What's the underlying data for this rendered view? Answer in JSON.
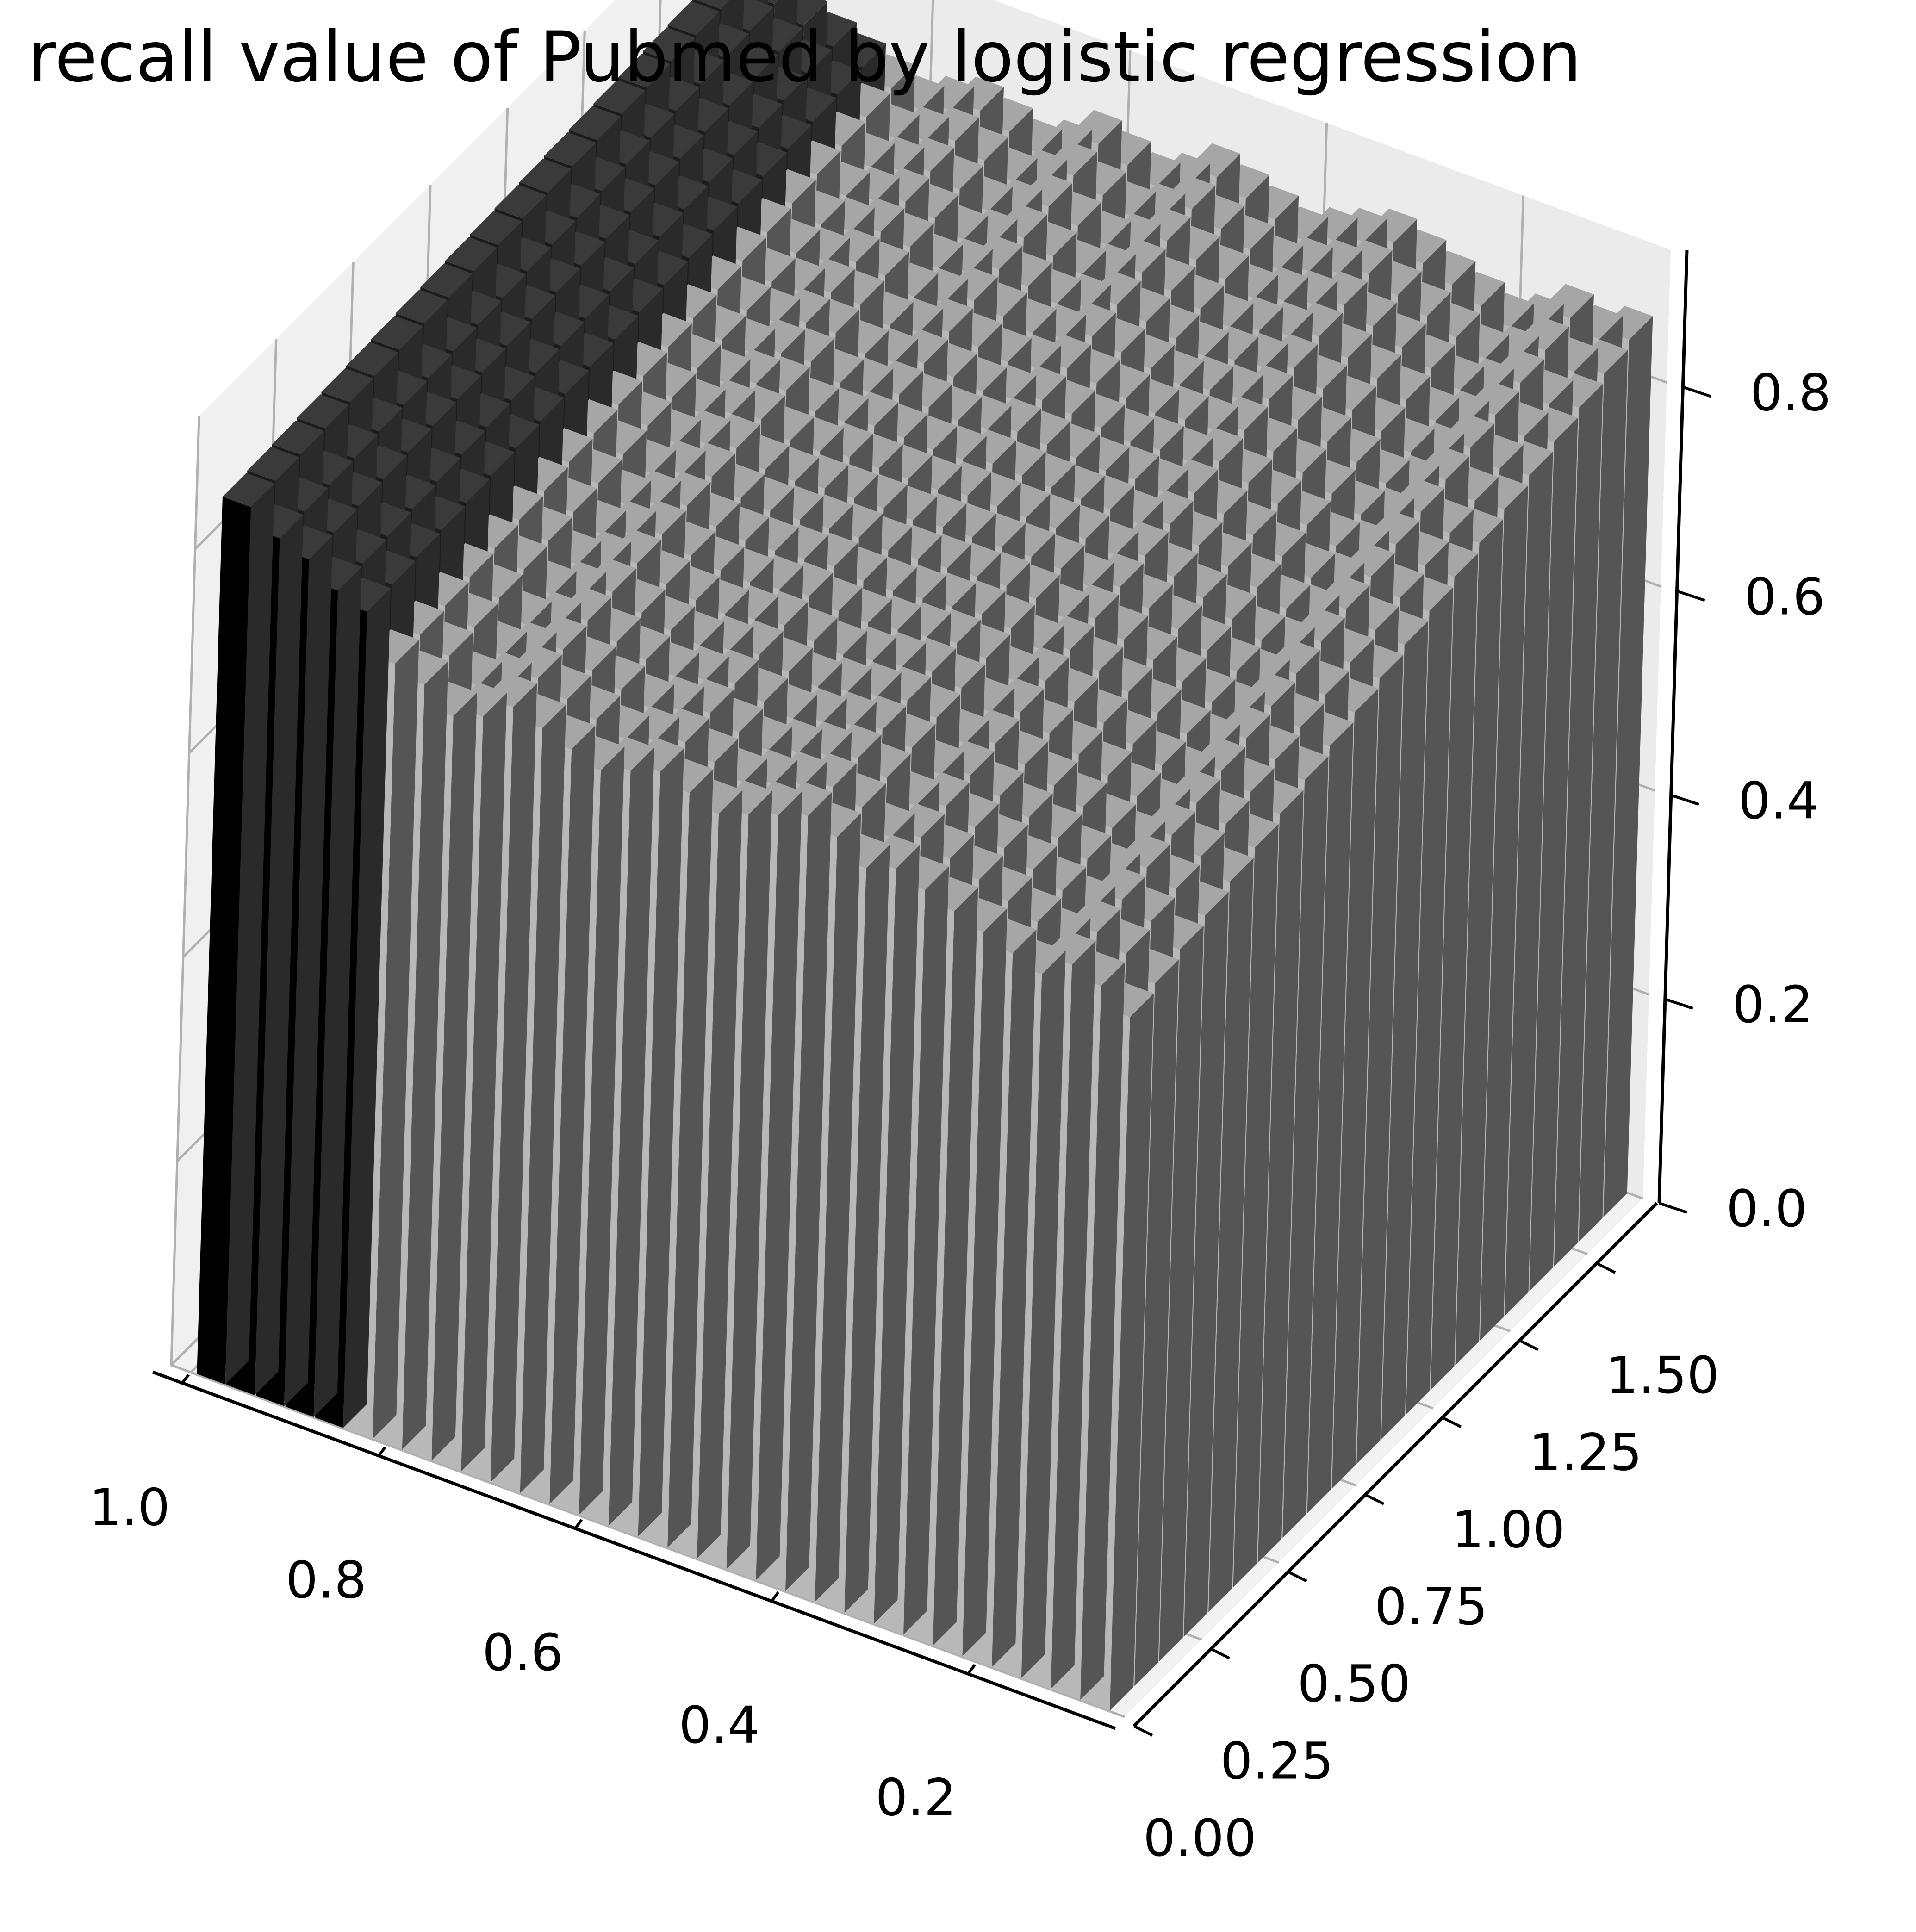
{
  "chart_data": {
    "type": "bar3d",
    "title": "recall value of Pubmed by logistic regression",
    "xlabel": "",
    "ylabel": "",
    "zlabel": "",
    "x_ticks": [
      "0.2",
      "0.4",
      "0.6",
      "0.8",
      "1.0"
    ],
    "y_ticks": [
      "0.00",
      "0.25",
      "0.50",
      "0.75",
      "1.00",
      "1.25",
      "1.50"
    ],
    "z_ticks": [
      "0.0",
      "0.2",
      "0.4",
      "0.6",
      "0.8"
    ],
    "xlim": [
      0.05,
      1.02
    ],
    "ylim": [
      0.0,
      1.68
    ],
    "zlim": [
      0.0,
      0.93
    ],
    "grid": true,
    "pane_color": "#f2f2f2",
    "grid_color": "#b0b0b0",
    "bar_colors": {
      "front_light": "#b8b8b8",
      "side_dark": "#555555",
      "top": "#a6a6a6",
      "right_dark": "#2a2a2a",
      "rightmost_front": "#000000"
    },
    "grid_x_values": [
      0.08,
      0.11,
      0.14,
      0.17,
      0.2,
      0.23,
      0.26,
      0.29,
      0.32,
      0.35,
      0.38,
      0.41,
      0.44,
      0.47,
      0.5,
      0.53,
      0.56,
      0.59,
      0.62,
      0.65,
      0.68,
      0.71,
      0.74,
      0.77,
      0.8,
      0.83,
      0.86,
      0.89,
      0.92,
      0.95,
      0.98
    ],
    "grid_y_values": [
      0.04,
      0.12,
      0.2,
      0.28,
      0.36,
      0.44,
      0.52,
      0.6,
      0.68,
      0.76,
      0.84,
      0.92,
      1.0,
      1.08,
      1.16,
      1.24,
      1.32,
      1.4,
      1.48,
      1.56,
      1.64
    ],
    "z_front_row": [
      0.68,
      0.7,
      0.71,
      0.69,
      0.7,
      0.71,
      0.72,
      0.73,
      0.74,
      0.73,
      0.75,
      0.76,
      0.75,
      0.74,
      0.73,
      0.74,
      0.75,
      0.74,
      0.73,
      0.74,
      0.75,
      0.76,
      0.74,
      0.73,
      0.75,
      0.76,
      0.8,
      0.81,
      0.83,
      0.84,
      0.86
    ],
    "z_back_row": [
      0.86,
      0.85,
      0.86,
      0.84,
      0.83,
      0.84,
      0.85,
      0.86,
      0.87,
      0.86,
      0.85,
      0.84,
      0.85,
      0.86,
      0.87,
      0.85,
      0.84,
      0.85,
      0.86,
      0.84,
      0.83,
      0.84,
      0.85,
      0.84,
      0.83,
      0.84,
      0.85,
      0.86,
      0.87,
      0.88,
      0.89
    ]
  }
}
